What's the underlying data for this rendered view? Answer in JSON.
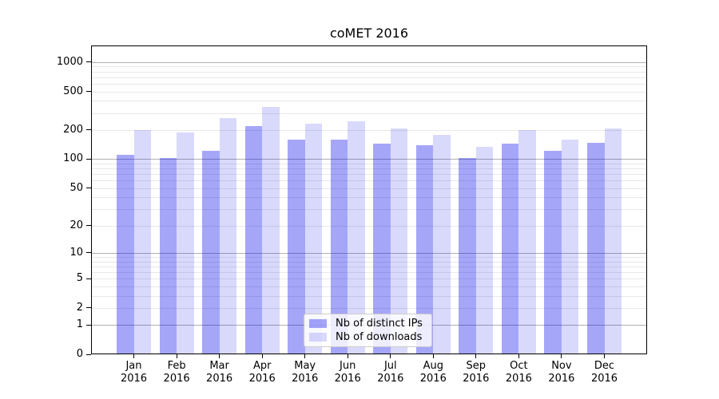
{
  "title": "coMET 2016",
  "chart_data": {
    "type": "bar",
    "title": "coMET 2016",
    "categories": [
      "Jan 2016",
      "Feb 2016",
      "Mar 2016",
      "Apr 2016",
      "May 2016",
      "Jun 2016",
      "Jul 2016",
      "Aug 2016",
      "Sep 2016",
      "Oct 2016",
      "Nov 2016",
      "Dec 2016"
    ],
    "series": [
      {
        "name": "Nb of distinct IPs",
        "color": "rgba(0,0,238,0.35)",
        "values": [
          110,
          102,
          121,
          218,
          158,
          158,
          144,
          138,
          102,
          144,
          122,
          148
        ]
      },
      {
        "name": "Nb of downloads",
        "color": "rgba(0,0,238,0.15)",
        "values": [
          201,
          190,
          264,
          346,
          231,
          246,
          208,
          177,
          133,
          199,
          158,
          209
        ]
      }
    ],
    "xlabel": "",
    "ylabel": "",
    "yscale": "log10(value+1)",
    "yticks": [
      0,
      1,
      2,
      5,
      10,
      20,
      50,
      100,
      200,
      500,
      1000
    ],
    "ylim": [
      0,
      1480
    ],
    "grid": "horizontal major and minor gridlines",
    "legend_position": "inside lower-center"
  },
  "colors": {
    "bar_distinct_ips": "rgba(0,0,238,0.35)",
    "bar_downloads": "rgba(0,0,238,0.15)",
    "grid_major": "#b0b0b0",
    "grid_minor": "#e8e8e8",
    "axis": "#000000",
    "legend_border": "#cccccc",
    "legend_background": "rgba(255,255,255,0.8)"
  }
}
